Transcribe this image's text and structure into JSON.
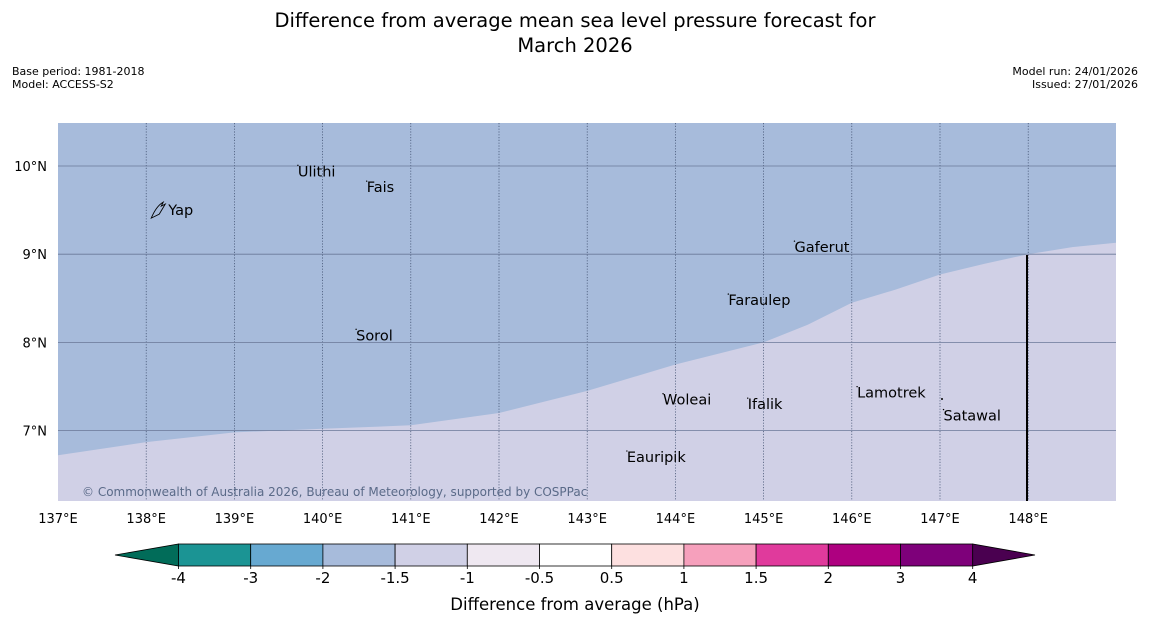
{
  "title": {
    "line1": "Difference from average mean sea level pressure forecast for",
    "line2": "March 2026"
  },
  "info": {
    "base_period": "Base period: 1981-2018",
    "model": "Model: ACCESS-S2",
    "model_run": "Model run: 24/01/2026",
    "issued": "Issued: 27/01/2026"
  },
  "colors": {
    "band_minus2_to_minus1_5": "#a7bbdb",
    "band_minus1_5_to_minus1": "#d0d0e6",
    "gridline": "#3a4a6a"
  },
  "map": {
    "lon_ticks": [
      "137°E",
      "138°E",
      "139°E",
      "140°E",
      "141°E",
      "142°E",
      "143°E",
      "144°E",
      "145°E",
      "146°E",
      "147°E",
      "148°E"
    ],
    "lat_ticks": [
      "10°N",
      "9°N",
      "8°N",
      "7°N"
    ],
    "places": [
      {
        "name": "Yap",
        "lon": 138.25,
        "lat": 9.5
      },
      {
        "name": "Ulithi",
        "lon": 139.72,
        "lat": 9.94
      },
      {
        "name": "Fais",
        "lon": 140.5,
        "lat": 9.76
      },
      {
        "name": "Gaferut",
        "lon": 145.35,
        "lat": 9.08
      },
      {
        "name": "Faraulep",
        "lon": 144.6,
        "lat": 8.48
      },
      {
        "name": "Sorol",
        "lon": 140.38,
        "lat": 8.08
      },
      {
        "name": "Lamotrek",
        "lon": 146.06,
        "lat": 7.43
      },
      {
        "name": "Woleai",
        "lon": 143.86,
        "lat": 7.35
      },
      {
        "name": "Ifalik",
        "lon": 144.82,
        "lat": 7.3
      },
      {
        "name": "Satawal",
        "lon": 147.04,
        "lat": 7.17
      },
      {
        "name": "Eauripik",
        "lon": 143.45,
        "lat": 6.7
      }
    ],
    "copyright": "© Commonwealth of Australia 2026, Bureau of Meteorology, supported by COSPPac",
    "contour_minus1_5": [
      [
        137.0,
        6.72
      ],
      [
        138.0,
        6.87
      ],
      [
        139.0,
        6.98
      ],
      [
        140.0,
        7.02
      ],
      [
        141.0,
        7.06
      ],
      [
        142.0,
        7.2
      ],
      [
        143.0,
        7.45
      ],
      [
        144.0,
        7.75
      ],
      [
        145.0,
        8.0
      ],
      [
        145.5,
        8.2
      ],
      [
        146.0,
        8.45
      ],
      [
        146.5,
        8.6
      ],
      [
        147.0,
        8.77
      ],
      [
        147.5,
        8.89
      ],
      [
        148.0,
        9.0
      ],
      [
        148.5,
        9.08
      ],
      [
        149.0,
        9.13
      ]
    ]
  },
  "colorbar": {
    "labels": [
      "-4",
      "-3",
      "-2",
      "-1.5",
      "-1",
      "-0.5",
      "0.5",
      "1",
      "1.5",
      "2",
      "3",
      "4"
    ],
    "colors": [
      "#1b9494",
      "#67a9d1",
      "#a7bbdb",
      "#d0d0e6",
      "#efe8f1",
      "#ffffff",
      "#fde0e0",
      "#f6a0bc",
      "#e03a9c",
      "#ae0080",
      "#7e007a"
    ],
    "under_color": "#016c59",
    "over_color": "#4a0050",
    "title": "Difference from average (hPa)"
  }
}
